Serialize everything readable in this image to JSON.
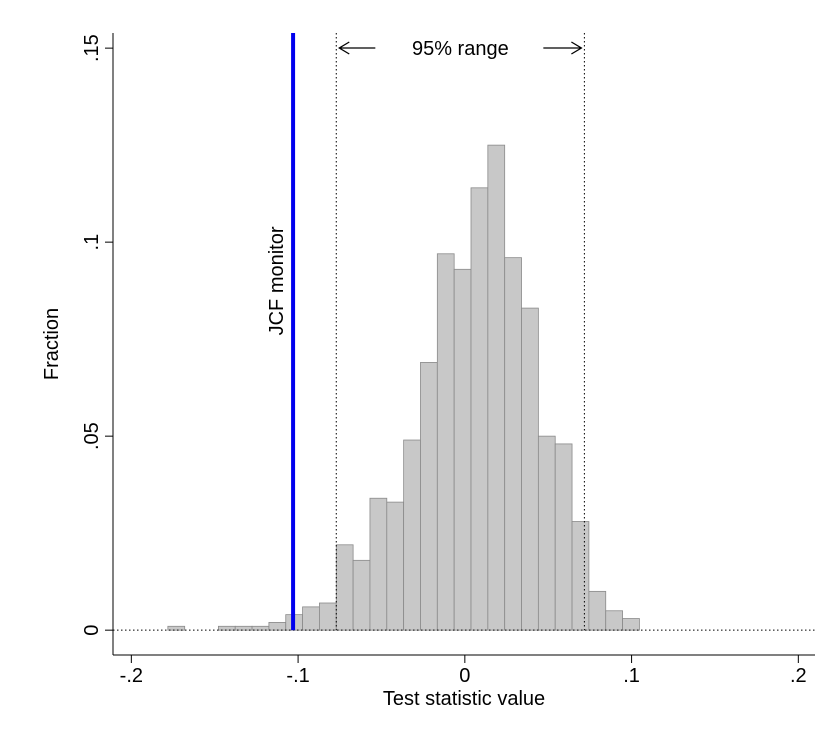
{
  "chart_data": {
    "type": "histogram",
    "xlabel": "Test statistic value",
    "ylabel": "Fraction",
    "bins": [
      -0.1781,
      -0.168,
      -0.1579,
      -0.1478,
      -0.1377,
      -0.1276,
      -0.1175,
      -0.1074,
      -0.0973,
      -0.0872,
      -0.0771,
      -0.067,
      -0.0569,
      -0.0468,
      -0.0367,
      -0.0266,
      -0.0165,
      -0.0064,
      0.0037,
      0.0138,
      0.0239,
      0.034,
      0.0441,
      0.0542,
      0.0643,
      0.0744,
      0.0845,
      0.0946,
      0.1047
    ],
    "values": [
      0.001,
      0,
      0,
      0.001,
      0.001,
      0.001,
      0.002,
      0.004,
      0.006,
      0.007,
      0.022,
      0.018,
      0.034,
      0.033,
      0.049,
      0.069,
      0.097,
      0.093,
      0.114,
      0.125,
      0.096,
      0.083,
      0.05,
      0.048,
      0.028,
      0.01,
      0.005,
      0.003
    ],
    "color": "#c8c8c8",
    "xlim": [
      -0.211,
      0.21
    ],
    "ylim": [
      -0.0064,
      0.1539
    ],
    "xticks": [
      {
        "value": -0.2,
        "label": "-.2"
      },
      {
        "value": -0.1,
        "label": "-.1"
      },
      0,
      {
        "value": 0.1,
        "label": ".1"
      },
      {
        "value": 0.2,
        "label": ".2"
      }
    ],
    "yticks": [
      0,
      {
        "value": 0.05,
        "label": ".05"
      },
      {
        "value": 0.1,
        "label": ".1"
      },
      {
        "value": 0.15,
        "label": ".15"
      }
    ],
    "reference_line": {
      "value": -0.103,
      "label": "JCF monitor",
      "color": "#0000ee"
    },
    "range": {
      "values": [
        -0.0771,
        0.0717
      ],
      "label": "95% range"
    }
  }
}
